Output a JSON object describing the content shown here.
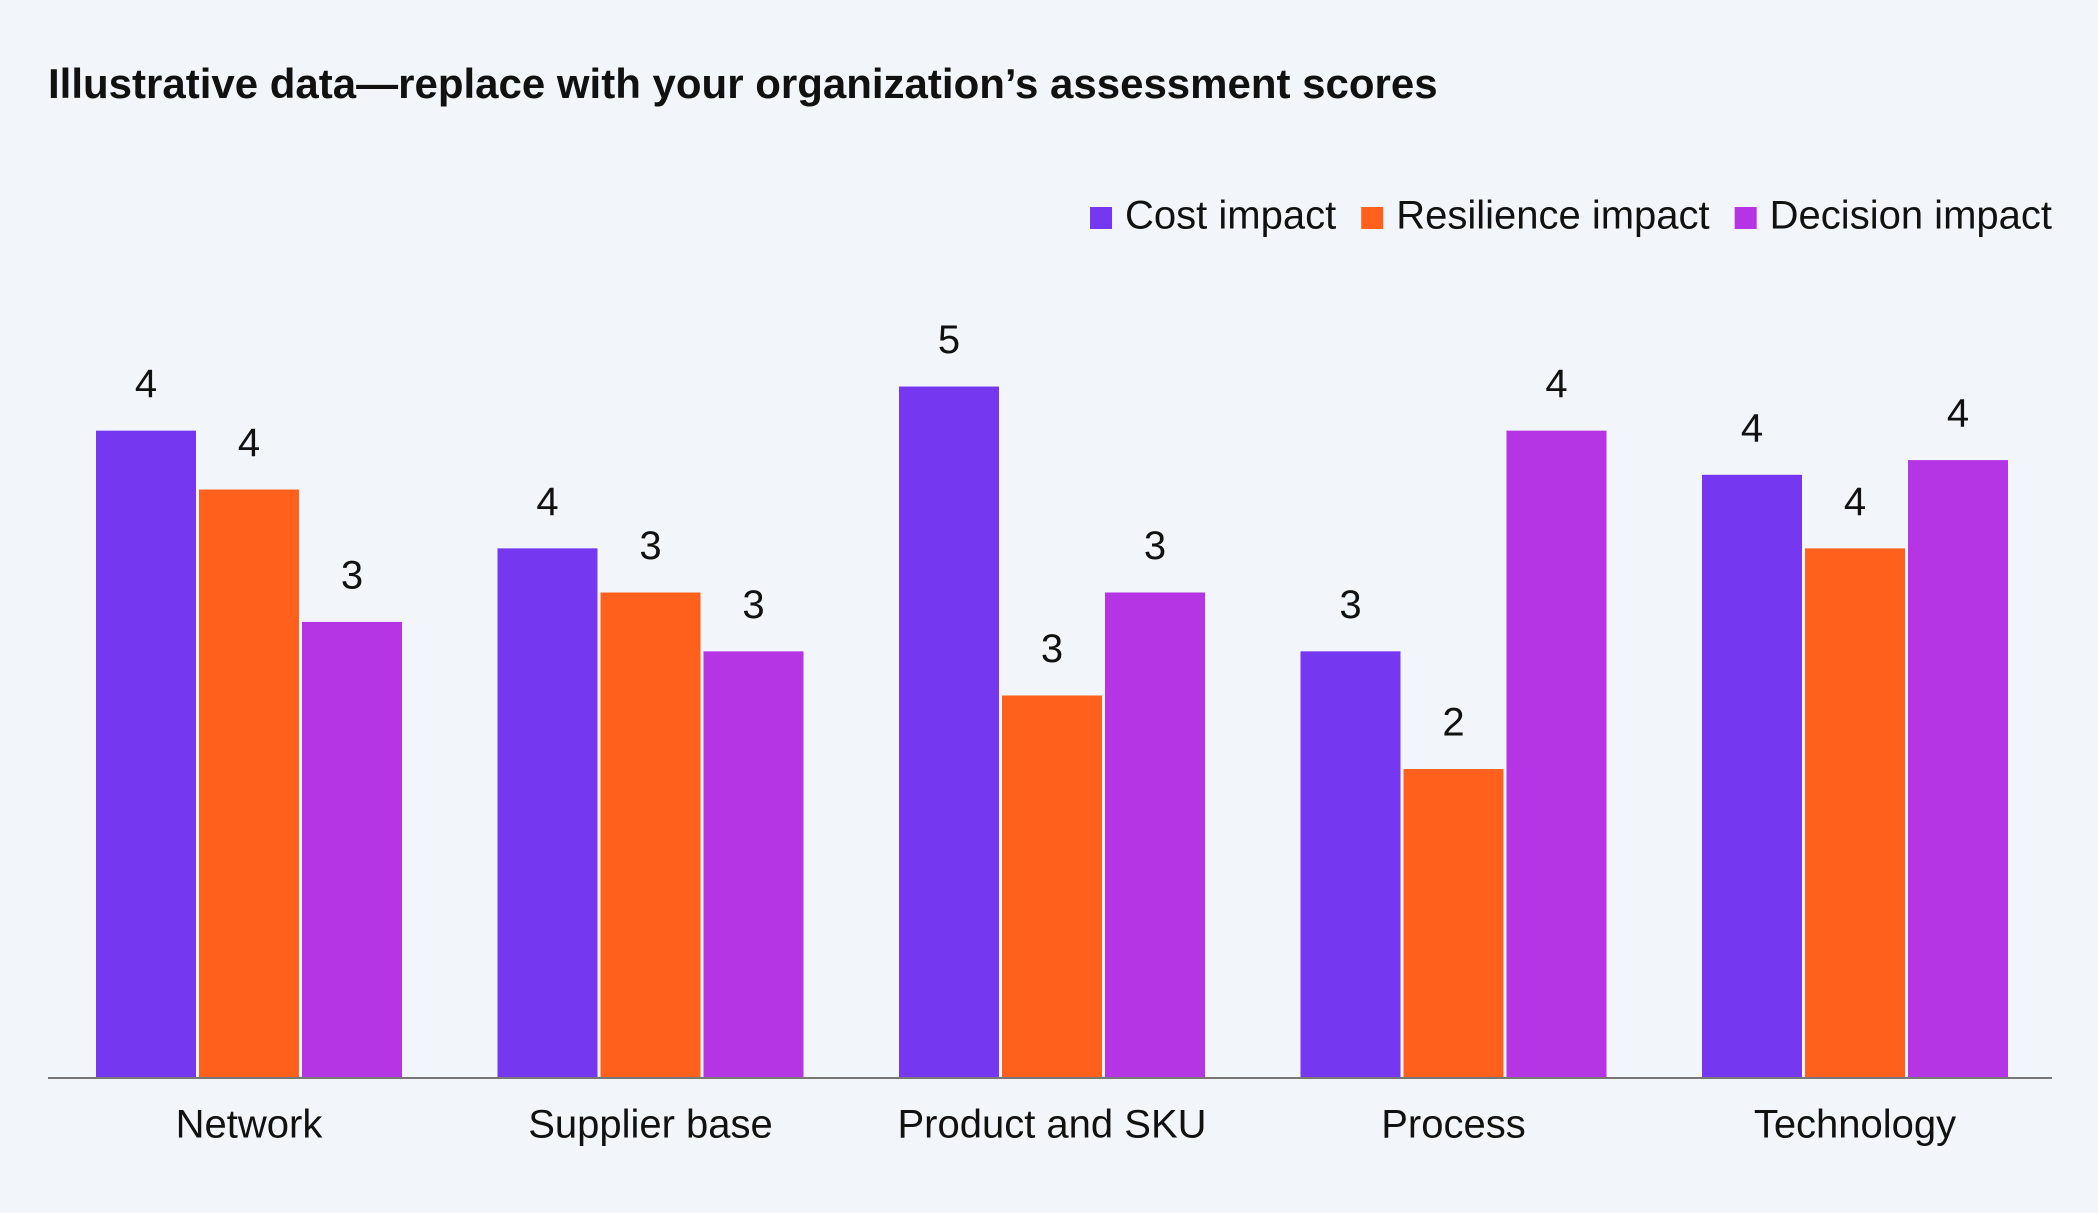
{
  "chart_data": {
    "type": "bar",
    "title": "Illustrative data—replace with your organization’s assessment scores",
    "categories": [
      "Network",
      "Supplier base",
      "Product and SKU",
      "Process",
      "Technology"
    ],
    "series": [
      {
        "name": "Cost impact",
        "color": "#7537f0",
        "values": [
          4.4,
          3.6,
          4.7,
          2.9,
          4.1
        ],
        "value_labels": [
          "4",
          "4",
          "5",
          "3",
          "4"
        ]
      },
      {
        "name": "Resilience impact",
        "color": "#ff611c",
        "values": [
          4.0,
          3.3,
          2.6,
          2.1,
          3.6
        ],
        "value_labels": [
          "4",
          "3",
          "3",
          "2",
          "4"
        ]
      },
      {
        "name": "Decision impact",
        "color": "#b534e3",
        "values": [
          3.1,
          2.9,
          3.3,
          4.4,
          4.2
        ],
        "value_labels": [
          "3",
          "3",
          "3",
          "4",
          "4"
        ]
      }
    ],
    "ylim": [
      0,
      7.3
    ],
    "legend": "top-right"
  }
}
